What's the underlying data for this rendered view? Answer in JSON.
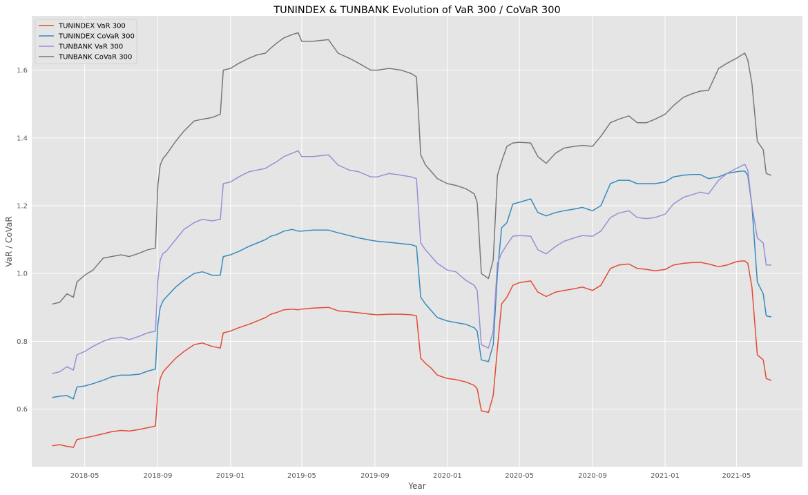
{
  "chart_data": {
    "type": "line",
    "title": "TUNINDEX & TUNBANK Evolution of VaR 300 / CoVaR 300",
    "xlabel": "Year",
    "ylabel": "VaR / CoVaR",
    "ylim": [
      0.43,
      1.76
    ],
    "xlim": [
      "2018-02-01",
      "2021-08-20"
    ],
    "grid": true,
    "legend_position": "top-left",
    "x_ticks": [
      "2018-05",
      "2018-09",
      "2019-01",
      "2019-05",
      "2019-09",
      "2020-01",
      "2020-05",
      "2020-09",
      "2021-01",
      "2021-05"
    ],
    "y_ticks": [
      0.6,
      0.8,
      1.0,
      1.2,
      1.4,
      1.6
    ],
    "x": [
      "2018-03-08",
      "2018-03-20",
      "2018-04-01",
      "2018-04-12",
      "2018-04-18",
      "2018-05-01",
      "2018-05-15",
      "2018-06-01",
      "2018-06-15",
      "2018-07-01",
      "2018-07-15",
      "2018-08-01",
      "2018-08-15",
      "2018-08-28",
      "2018-09-01",
      "2018-09-05",
      "2018-09-10",
      "2018-09-15",
      "2018-10-01",
      "2018-10-15",
      "2018-11-01",
      "2018-11-15",
      "2018-12-01",
      "2018-12-15",
      "2018-12-20",
      "2019-01-01",
      "2019-01-15",
      "2019-02-01",
      "2019-02-15",
      "2019-03-01",
      "2019-03-10",
      "2019-03-20",
      "2019-04-01",
      "2019-04-15",
      "2019-04-25",
      "2019-05-01",
      "2019-05-20",
      "2019-06-15",
      "2019-07-01",
      "2019-07-20",
      "2019-08-05",
      "2019-08-25",
      "2019-09-05",
      "2019-09-25",
      "2019-10-15",
      "2019-11-01",
      "2019-11-10",
      "2019-11-17",
      "2019-11-25",
      "2019-12-05",
      "2019-12-15",
      "2020-01-01",
      "2020-01-15",
      "2020-02-01",
      "2020-02-15",
      "2020-02-20",
      "2020-02-27",
      "2020-03-10",
      "2020-03-18",
      "2020-03-25",
      "2020-04-01",
      "2020-04-10",
      "2020-04-20",
      "2020-05-01",
      "2020-05-20",
      "2020-06-01",
      "2020-06-15",
      "2020-07-01",
      "2020-07-15",
      "2020-08-01",
      "2020-08-15",
      "2020-09-01",
      "2020-09-15",
      "2020-10-01",
      "2020-10-15",
      "2020-11-01",
      "2020-11-15",
      "2020-12-01",
      "2020-12-15",
      "2021-01-01",
      "2021-01-15",
      "2021-02-01",
      "2021-02-15",
      "2021-03-01",
      "2021-03-15",
      "2021-04-01",
      "2021-04-15",
      "2021-05-01",
      "2021-05-10",
      "2021-05-15",
      "2021-05-20",
      "2021-05-27",
      "2021-06-05",
      "2021-06-15",
      "2021-06-20",
      "2021-06-28"
    ],
    "series": [
      {
        "name": "TUNINDEX VaR 300",
        "color": "#e24a33",
        "values": [
          0.492,
          0.495,
          0.49,
          0.487,
          0.51,
          0.515,
          0.52,
          0.527,
          0.533,
          0.537,
          0.535,
          0.54,
          0.545,
          0.55,
          0.65,
          0.69,
          0.71,
          0.72,
          0.75,
          0.77,
          0.79,
          0.795,
          0.785,
          0.78,
          0.825,
          0.83,
          0.84,
          0.85,
          0.86,
          0.87,
          0.88,
          0.885,
          0.893,
          0.895,
          0.893,
          0.895,
          0.898,
          0.9,
          0.89,
          0.887,
          0.884,
          0.88,
          0.878,
          0.88,
          0.88,
          0.878,
          0.875,
          0.75,
          0.735,
          0.72,
          0.7,
          0.69,
          0.687,
          0.68,
          0.67,
          0.66,
          0.595,
          0.59,
          0.64,
          0.78,
          0.91,
          0.93,
          0.965,
          0.973,
          0.978,
          0.945,
          0.932,
          0.945,
          0.95,
          0.955,
          0.96,
          0.95,
          0.965,
          1.015,
          1.025,
          1.028,
          1.015,
          1.012,
          1.008,
          1.012,
          1.025,
          1.03,
          1.032,
          1.033,
          1.028,
          1.02,
          1.025,
          1.035,
          1.037,
          1.037,
          1.03,
          0.96,
          0.76,
          0.745,
          0.69,
          0.685
        ]
      },
      {
        "name": "TUNINDEX CoVaR 300",
        "color": "#348abd",
        "values": [
          0.634,
          0.638,
          0.64,
          0.63,
          0.665,
          0.668,
          0.675,
          0.685,
          0.695,
          0.7,
          0.7,
          0.703,
          0.712,
          0.718,
          0.85,
          0.9,
          0.92,
          0.93,
          0.96,
          0.98,
          1.0,
          1.005,
          0.995,
          0.995,
          1.05,
          1.055,
          1.065,
          1.08,
          1.09,
          1.1,
          1.11,
          1.115,
          1.125,
          1.13,
          1.125,
          1.125,
          1.128,
          1.128,
          1.12,
          1.112,
          1.105,
          1.098,
          1.095,
          1.092,
          1.088,
          1.085,
          1.08,
          0.93,
          0.91,
          0.89,
          0.87,
          0.86,
          0.855,
          0.85,
          0.84,
          0.83,
          0.745,
          0.74,
          0.79,
          1.0,
          1.135,
          1.15,
          1.205,
          1.21,
          1.22,
          1.18,
          1.17,
          1.18,
          1.185,
          1.19,
          1.195,
          1.185,
          1.2,
          1.265,
          1.275,
          1.275,
          1.265,
          1.265,
          1.265,
          1.27,
          1.285,
          1.29,
          1.292,
          1.292,
          1.28,
          1.285,
          1.295,
          1.3,
          1.302,
          1.302,
          1.29,
          1.2,
          0.975,
          0.94,
          0.875,
          0.872
        ]
      },
      {
        "name": "TUNBANK VaR 300",
        "color": "#988ed5",
        "values": [
          0.705,
          0.71,
          0.725,
          0.715,
          0.76,
          0.77,
          0.785,
          0.8,
          0.808,
          0.812,
          0.805,
          0.815,
          0.825,
          0.83,
          0.98,
          1.04,
          1.06,
          1.065,
          1.1,
          1.13,
          1.15,
          1.16,
          1.155,
          1.16,
          1.265,
          1.27,
          1.285,
          1.3,
          1.305,
          1.31,
          1.32,
          1.33,
          1.345,
          1.355,
          1.362,
          1.345,
          1.345,
          1.35,
          1.32,
          1.305,
          1.3,
          1.285,
          1.285,
          1.295,
          1.29,
          1.285,
          1.28,
          1.09,
          1.07,
          1.05,
          1.03,
          1.01,
          1.005,
          0.98,
          0.965,
          0.95,
          0.79,
          0.78,
          0.83,
          1.03,
          1.06,
          1.085,
          1.11,
          1.112,
          1.11,
          1.07,
          1.058,
          1.08,
          1.095,
          1.105,
          1.112,
          1.11,
          1.125,
          1.165,
          1.178,
          1.185,
          1.165,
          1.162,
          1.165,
          1.175,
          1.205,
          1.225,
          1.232,
          1.24,
          1.235,
          1.275,
          1.295,
          1.31,
          1.318,
          1.322,
          1.305,
          1.2,
          1.105,
          1.09,
          1.025,
          1.025
        ]
      },
      {
        "name": "TUNBANK CoVaR 300",
        "color": "#777777",
        "values": [
          0.91,
          0.915,
          0.94,
          0.93,
          0.975,
          0.995,
          1.01,
          1.045,
          1.05,
          1.055,
          1.05,
          1.06,
          1.07,
          1.075,
          1.26,
          1.32,
          1.34,
          1.35,
          1.39,
          1.42,
          1.45,
          1.455,
          1.46,
          1.47,
          1.6,
          1.605,
          1.62,
          1.635,
          1.645,
          1.65,
          1.665,
          1.68,
          1.695,
          1.705,
          1.71,
          1.685,
          1.685,
          1.69,
          1.65,
          1.635,
          1.62,
          1.6,
          1.6,
          1.605,
          1.6,
          1.59,
          1.58,
          1.35,
          1.32,
          1.3,
          1.28,
          1.265,
          1.26,
          1.25,
          1.235,
          1.21,
          1.0,
          0.985,
          1.04,
          1.29,
          1.33,
          1.375,
          1.385,
          1.387,
          1.385,
          1.345,
          1.325,
          1.355,
          1.37,
          1.375,
          1.378,
          1.375,
          1.405,
          1.445,
          1.455,
          1.465,
          1.445,
          1.445,
          1.455,
          1.47,
          1.495,
          1.52,
          1.53,
          1.538,
          1.54,
          1.605,
          1.62,
          1.635,
          1.645,
          1.65,
          1.63,
          1.56,
          1.39,
          1.365,
          1.295,
          1.29
        ]
      }
    ]
  }
}
